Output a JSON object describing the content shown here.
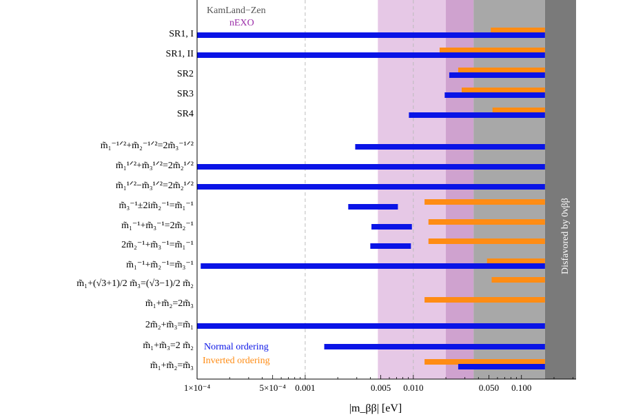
{
  "chart_data": {
    "type": "bar",
    "orientation": "horizontal-range",
    "xscale": "log",
    "xlim": [
      0.0001,
      0.32
    ],
    "xlabel": "|m_ββ| [eV]",
    "xticks": [
      {
        "value": 0.0001,
        "label": "1×10⁻⁴"
      },
      {
        "value": 0.0005,
        "label": "5×10⁻⁴"
      },
      {
        "value": 0.001,
        "label": "0.001"
      },
      {
        "value": 0.005,
        "label": "0.005"
      },
      {
        "value": 0.01,
        "label": "0.010"
      },
      {
        "value": 0.05,
        "label": "0.050"
      },
      {
        "value": 0.1,
        "label": "0.100"
      }
    ],
    "bands": [
      {
        "name": "KamLand-Zen",
        "lower": 0.036,
        "upper": 0.165,
        "color": "#a8a8a8"
      },
      {
        "name": "nEXO",
        "lower": 0.0047,
        "upper": 0.036,
        "color": "#e6c8e6"
      },
      {
        "name": "nEXO-overlap",
        "lower": 0.02,
        "upper": 0.036,
        "color": "#cfa2cf"
      },
      {
        "name": "Disfavored by 0νββ",
        "lower": 0.165,
        "upper": 0.32,
        "color": "#7a7a7a"
      }
    ],
    "dashed_lines": [
      0.001,
      0.01
    ],
    "band_labels": {
      "kamland": "KamLand−Zen",
      "nexo": "nEXO",
      "disfavored": "Disfavored by 0νββ"
    },
    "legend": {
      "position": "bottom-left",
      "normal": {
        "label": "Normal ordering",
        "color": "#0a14e6"
      },
      "inverted": {
        "label": "Inverted ordering",
        "color": "#ff8c14"
      }
    },
    "rows": [
      {
        "label": "SR1, I",
        "normal": [
          0.0001,
          0.165
        ],
        "inverted": [
          0.052,
          0.165
        ]
      },
      {
        "label": "SR1, II",
        "normal": [
          0.0001,
          0.165
        ],
        "inverted": [
          0.0175,
          0.165
        ]
      },
      {
        "label": "SR2",
        "normal": [
          0.0215,
          0.165
        ],
        "inverted": [
          0.026,
          0.165
        ]
      },
      {
        "label": "SR3",
        "normal": [
          0.0195,
          0.165
        ],
        "inverted": [
          0.028,
          0.165
        ]
      },
      {
        "label": "SR4",
        "normal": [
          0.0091,
          0.165
        ],
        "inverted": [
          0.054,
          0.165
        ]
      },
      {
        "label": "m̃₁⁻¹ᐟ²+m̃₂⁻¹ᐟ²=2m̃₃⁻¹ᐟ²",
        "normal": [
          0.0029,
          0.165
        ],
        "inverted": null
      },
      {
        "label": "m̃₁¹ᐟ²+m̃₃¹ᐟ²=2m̃₂¹ᐟ²",
        "normal": [
          0.0001,
          0.165
        ],
        "inverted": null
      },
      {
        "label": "m̃₁¹ᐟ²−m̃₃¹ᐟ²=2m̃₂¹ᐟ²",
        "normal": [
          0.0001,
          0.165
        ],
        "inverted": null
      },
      {
        "label": "m̃₃⁻¹±2im̃₂⁻¹=m̃₁⁻¹",
        "normal": [
          0.0025,
          0.0072
        ],
        "inverted": [
          0.0127,
          0.165
        ]
      },
      {
        "label": "m̃₁⁻¹+m̃₃⁻¹=2m̃₂⁻¹",
        "normal": [
          0.0041,
          0.0097
        ],
        "inverted": [
          0.0138,
          0.165
        ]
      },
      {
        "label": "2m̃₂⁻¹+m̃₃⁻¹=m̃₁⁻¹",
        "normal": [
          0.004,
          0.0095
        ],
        "inverted": [
          0.0138,
          0.165
        ]
      },
      {
        "label": "m̃₁⁻¹+m̃₂⁻¹=m̃₃⁻¹",
        "normal": [
          0.000108,
          0.165
        ],
        "inverted": [
          0.048,
          0.165
        ]
      },
      {
        "label": "m̃₁+(√3+1)/2 m̃₃=(√3−1)/2 m̃₂",
        "normal": null,
        "inverted": [
          0.053,
          0.165
        ]
      },
      {
        "label": "m̃₁+m̃₂=2m̃₃",
        "normal": null,
        "inverted": [
          0.0127,
          0.165
        ]
      },
      {
        "label": "2m̃₂+m̃₃=m̃₁",
        "normal": [
          0.0001,
          0.165
        ],
        "inverted": null
      },
      {
        "label": "m̃₁+m̃₃=2 m̃₂",
        "normal": [
          0.0015,
          0.165
        ],
        "inverted": null
      },
      {
        "label": "m̃₁+m̃₂=m̃₃",
        "normal": [
          0.026,
          0.165
        ],
        "inverted": [
          0.0127,
          0.165
        ]
      }
    ]
  }
}
